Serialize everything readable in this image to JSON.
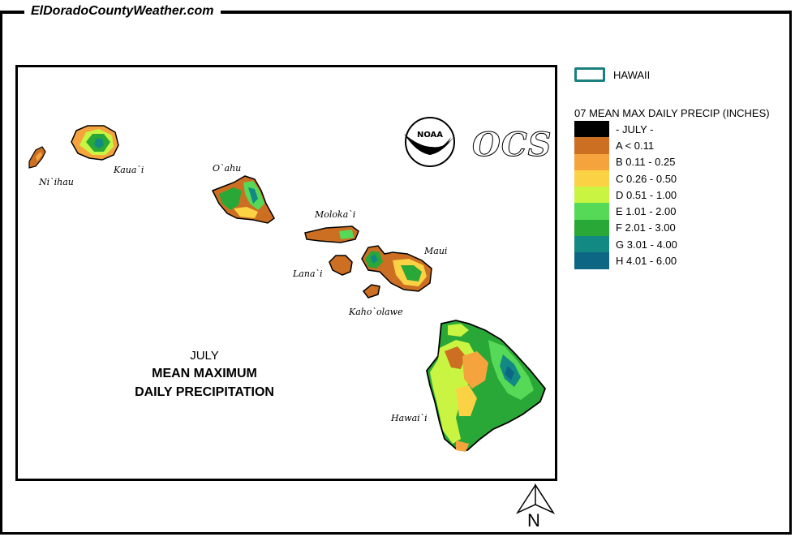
{
  "site": {
    "title": "ElDoradoCountyWeather.com"
  },
  "map": {
    "title_line1": "JULY",
    "title_line2": "MEAN MAXIMUM",
    "title_line3": "DAILY PRECIPITATION",
    "islands": [
      {
        "id": "niihau",
        "label": "Ni`ihau"
      },
      {
        "id": "kauai",
        "label": "Kaua`i"
      },
      {
        "id": "oahu",
        "label": "O`ahu"
      },
      {
        "id": "molokai",
        "label": "Moloka`i"
      },
      {
        "id": "lanai",
        "label": "Lana`i"
      },
      {
        "id": "maui",
        "label": "Maui"
      },
      {
        "id": "kahoolawe",
        "label": "Kaho`olawe"
      },
      {
        "id": "hawaii",
        "label": "Hawai`i"
      }
    ],
    "logos": {
      "noaa_text": "NOAA",
      "ocs_text": "OCS"
    },
    "north_label": "N"
  },
  "legend": {
    "state_label": "HAWAII",
    "state_color": "#1b7f7f",
    "title": "07 MEAN MAX DAILY PRECIP (INCHES)",
    "items": [
      {
        "label": "- JULY -",
        "color": "#000000"
      },
      {
        "label": "A < 0.11",
        "color": "#cc6f22"
      },
      {
        "label": "B 0.11 - 0.25",
        "color": "#f5a43d"
      },
      {
        "label": "C 0.26 - 0.50",
        "color": "#fbd244"
      },
      {
        "label": "D 0.51 - 1.00",
        "color": "#c9f542"
      },
      {
        "label": "E 1.01 - 2.00",
        "color": "#57d958"
      },
      {
        "label": "F 2.01 - 3.00",
        "color": "#2aa837"
      },
      {
        "label": "G 3.01 - 4.00",
        "color": "#128a83"
      },
      {
        "label": "H 4.01 - 6.00",
        "color": "#0d6684"
      }
    ]
  }
}
